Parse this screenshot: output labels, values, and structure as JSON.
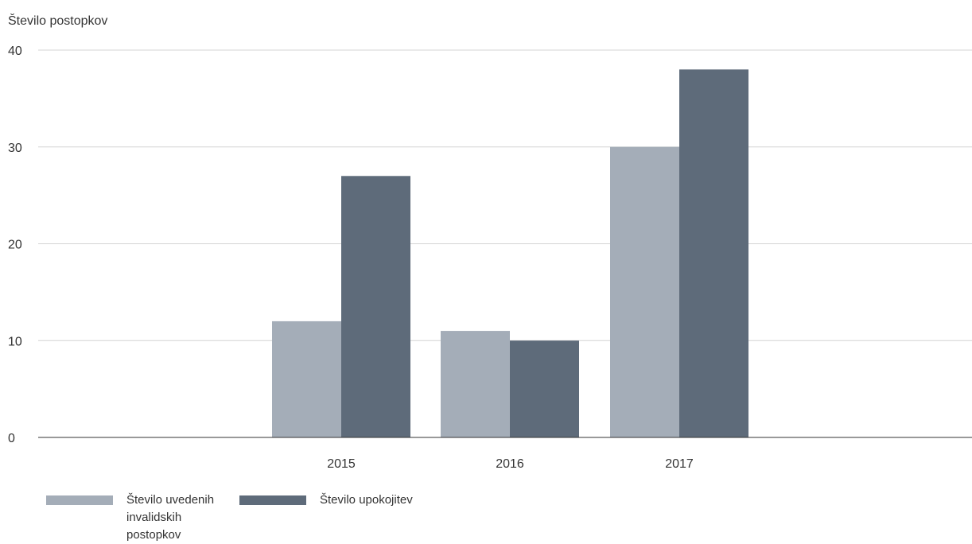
{
  "chart_data": {
    "type": "bar",
    "title": "",
    "ylabel": "Število postopkov",
    "xlabel": "",
    "categories": [
      "2015",
      "2016",
      "2017"
    ],
    "series": [
      {
        "name": "Število uvedenih invalidskih postopkov",
        "values": [
          12,
          11,
          30
        ],
        "color": "#a4adb8"
      },
      {
        "name": "Število upokojitev",
        "values": [
          27,
          10,
          38
        ],
        "color": "#5e6b7a"
      }
    ],
    "ylim": [
      0,
      40
    ],
    "yticks": [
      0,
      10,
      20,
      30,
      40
    ],
    "grid": true,
    "legend_position": "bottom-left"
  }
}
